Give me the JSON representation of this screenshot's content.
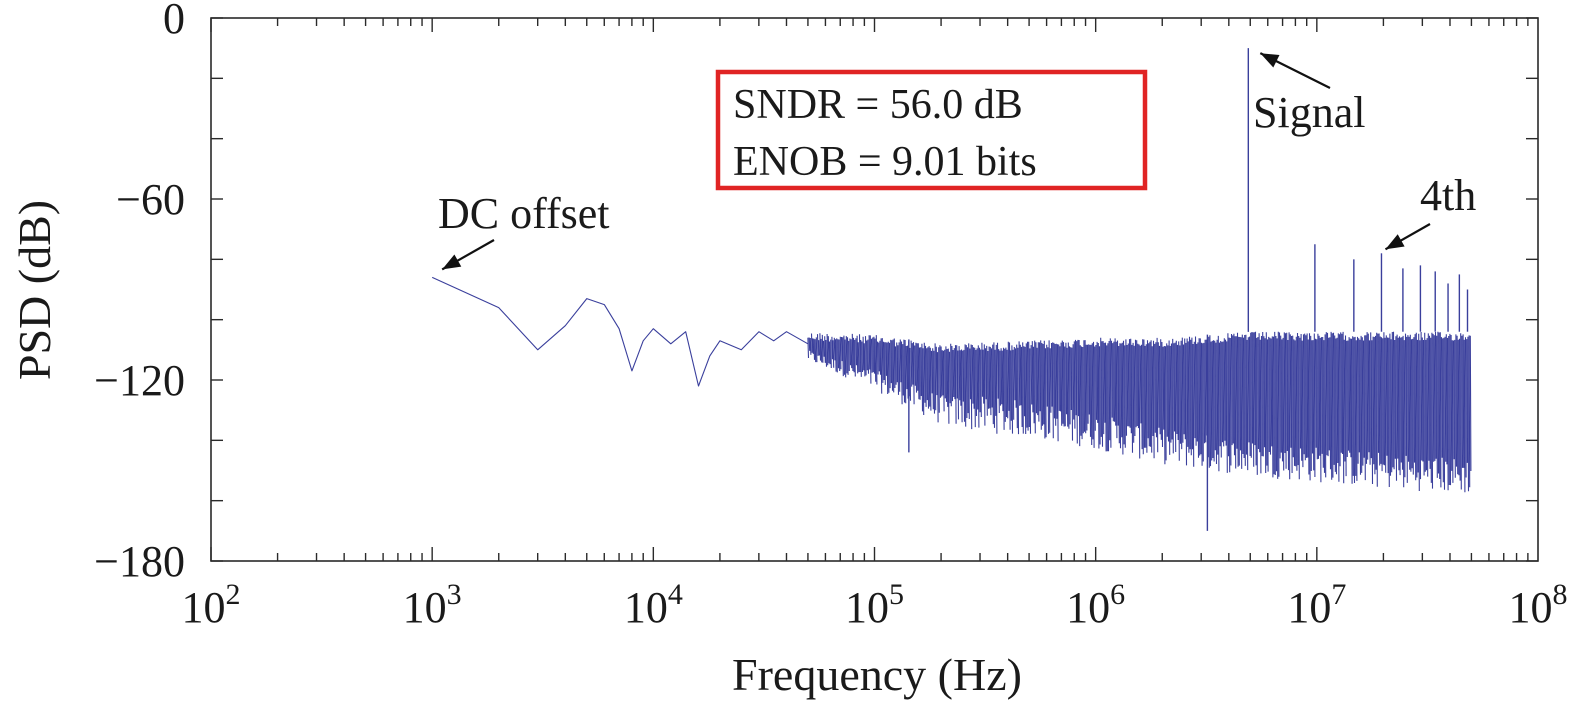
{
  "chart_data": {
    "type": "line",
    "xlabel": "Frequency (Hz)",
    "ylabel": "PSD (dB)",
    "x_scale": "log",
    "xlim": [
      100,
      100000000
    ],
    "ylim": [
      -180,
      0
    ],
    "x_ticks": [
      {
        "value": 100,
        "base": "10",
        "exp": "2"
      },
      {
        "value": 1000,
        "base": "10",
        "exp": "3"
      },
      {
        "value": 10000,
        "base": "10",
        "exp": "4"
      },
      {
        "value": 100000,
        "base": "10",
        "exp": "5"
      },
      {
        "value": 1000000,
        "base": "10",
        "exp": "6"
      },
      {
        "value": 10000000,
        "base": "10",
        "exp": "7"
      },
      {
        "value": 100000000,
        "base": "10",
        "exp": "8"
      }
    ],
    "y_ticks": [
      {
        "value": 0,
        "label": "0"
      },
      {
        "value": -60,
        "label": "−60"
      },
      {
        "value": -120,
        "label": "−120"
      },
      {
        "value": -180,
        "label": "−180"
      }
    ],
    "grid": false,
    "colors": {
      "spectrum": "#3a3f9c",
      "annotation_box": "#e02424",
      "axes": "#2a2a2a"
    },
    "series": [
      {
        "x": [
          1000,
          2000,
          3000,
          4000,
          5000,
          6000,
          7000,
          8000,
          9000,
          10000,
          12000,
          14000,
          16000,
          18000,
          20000,
          25000,
          30000,
          35000,
          40000,
          50000,
          60000,
          70000,
          80000,
          90000,
          100000,
          150000,
          200000,
          300000,
          500000,
          1000000,
          2000000,
          3000000,
          4000000,
          4900000,
          6000000,
          8000000,
          10000000,
          15000000,
          20000000,
          30000000,
          50000000
        ],
        "y": [
          -86,
          -96,
          -110,
          -102,
          -93,
          -95,
          -103,
          -117,
          -107,
          -103,
          -108,
          -104,
          -122,
          -112,
          -107,
          -110,
          -104,
          -107,
          -104,
          -108,
          -105,
          -106,
          -104,
          -107,
          -108,
          -110,
          -112,
          -113,
          -113,
          -113,
          -113,
          -112,
          -112,
          -111,
          -112,
          -112,
          -112,
          -112,
          -112,
          -112,
          -112
        ]
      }
    ],
    "noise_envelope": {
      "x": [
        50000,
        100000,
        200000,
        500000,
        1000000,
        2000000,
        5000000,
        10000000,
        20000000,
        50000000
      ],
      "upper": [
        -104,
        -105,
        -108,
        -107,
        -106,
        -106,
        -104,
        -104,
        -104,
        -104
      ],
      "lower": [
        -112,
        -120,
        -130,
        -133,
        -137,
        -142,
        -146,
        -148,
        -150,
        -152
      ]
    },
    "spikes": [
      {
        "x": 143000,
        "y": -144
      },
      {
        "x": 3200000,
        "y": -170
      },
      {
        "x": 4900000,
        "y": -10
      },
      {
        "x": 9800000,
        "y": -75
      },
      {
        "x": 14700000,
        "y": -80
      },
      {
        "x": 19600000,
        "y": -78
      },
      {
        "x": 24500000,
        "y": -83
      },
      {
        "x": 29400000,
        "y": -82
      },
      {
        "x": 34300000,
        "y": -84
      },
      {
        "x": 39200000,
        "y": -88
      },
      {
        "x": 44100000,
        "y": -85
      },
      {
        "x": 48000000,
        "y": -90
      }
    ],
    "annotations": [
      {
        "text": "DC offset",
        "x": 1000,
        "y": -86
      },
      {
        "text": "Signal",
        "x": 4900000,
        "y": -10
      },
      {
        "text": "4th",
        "x": 19600000,
        "y": -78
      }
    ],
    "metrics_box": {
      "line1": "SNDR = 56.0 dB",
      "line2": "ENOB = 9.01 bits"
    }
  }
}
